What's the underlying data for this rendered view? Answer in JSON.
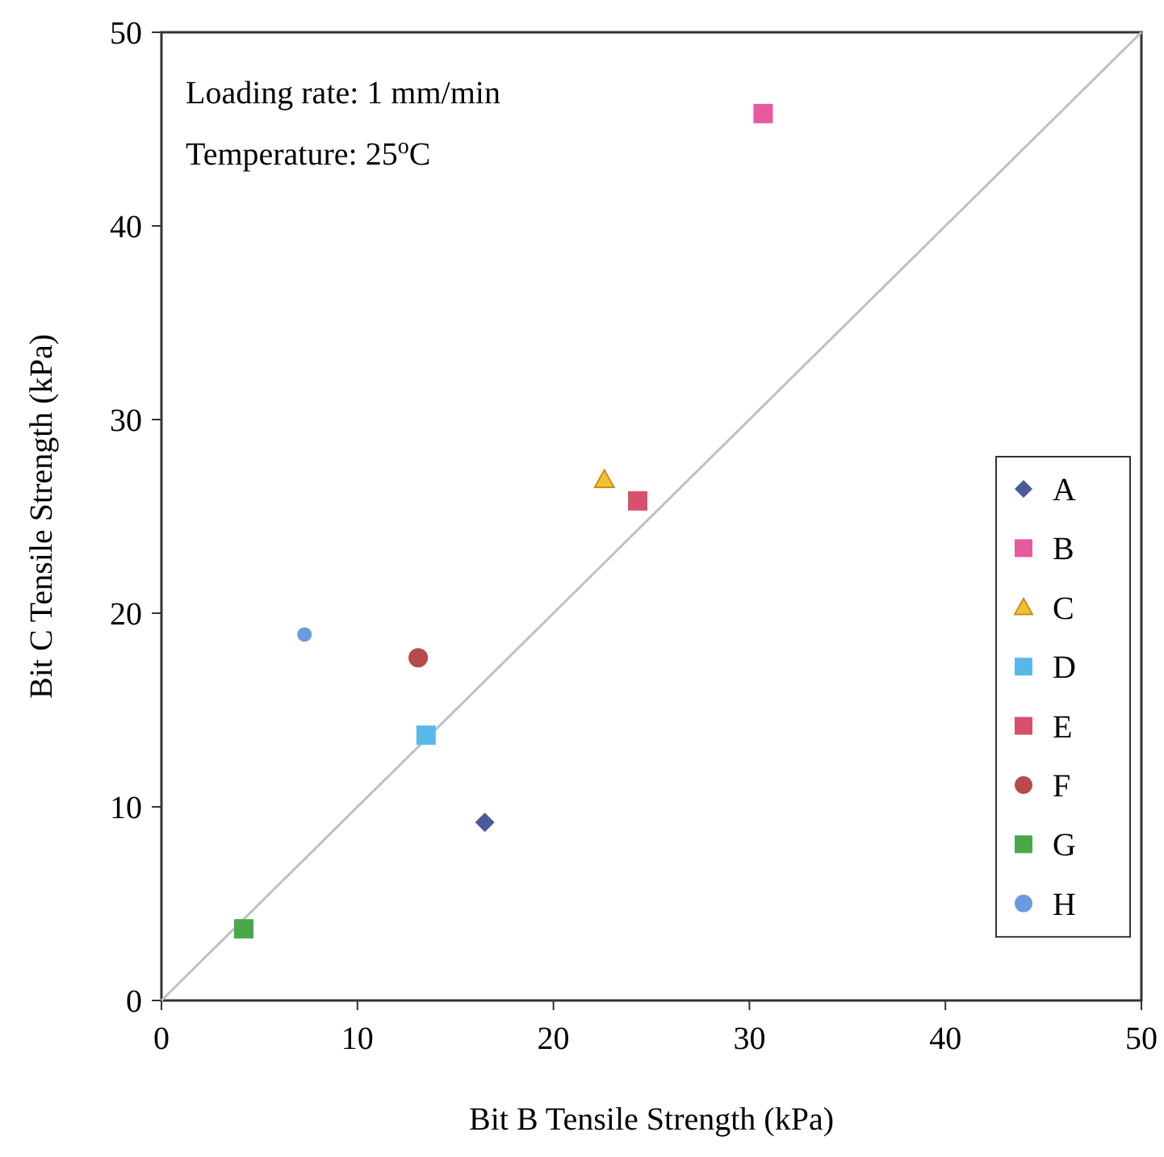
{
  "chart_data": {
    "type": "scatter",
    "xlabel": "Bit B Tensile Strength (kPa)",
    "ylabel": "Bit C Tensile Strength (kPa)",
    "xlim": [
      0,
      50
    ],
    "ylim": [
      0,
      50
    ],
    "xticks": [
      0,
      10,
      20,
      30,
      40,
      50
    ],
    "yticks": [
      0,
      10,
      20,
      30,
      40,
      50
    ],
    "grid": false,
    "legend": "right",
    "annotations": [
      "Loading rate: 1 mm/min",
      "Temperature: 25$^{o}$C"
    ],
    "series": [
      {
        "type": "line",
        "color": "#c0c0c0",
        "x": [
          0,
          50
        ],
        "values": [
          0,
          50
        ],
        "marker": "none",
        "line_style": "solid"
      },
      {
        "name": "A",
        "color": "#4a5a9c",
        "x": [
          16.5
        ],
        "values": [
          9.2
        ],
        "marker": "diamond"
      },
      {
        "name": "B",
        "color": "#e85aa0",
        "x": [
          30.7
        ],
        "values": [
          45.8
        ],
        "marker": "square"
      },
      {
        "name": "C",
        "color": "#f5c030",
        "x": [
          22.6
        ],
        "values": [
          26.9
        ],
        "marker": "triangle"
      },
      {
        "name": "D",
        "color": "#5ab8e8",
        "x": [
          13.5
        ],
        "values": [
          13.7
        ],
        "marker": "square"
      },
      {
        "name": "E",
        "color": "#d8506a",
        "x": [
          24.3
        ],
        "values": [
          25.8
        ],
        "marker": "square"
      },
      {
        "name": "F",
        "color": "#b84a4a",
        "x": [
          13.1
        ],
        "values": [
          17.7
        ],
        "marker": "circle"
      },
      {
        "name": "G",
        "color": "#4aa84a",
        "x": [
          4.2
        ],
        "values": [
          3.7
        ],
        "marker": "square"
      },
      {
        "name": "H",
        "color": "#6a9ae0",
        "x": [
          7.3
        ],
        "values": [
          18.9
        ],
        "marker": "circle"
      }
    ]
  }
}
